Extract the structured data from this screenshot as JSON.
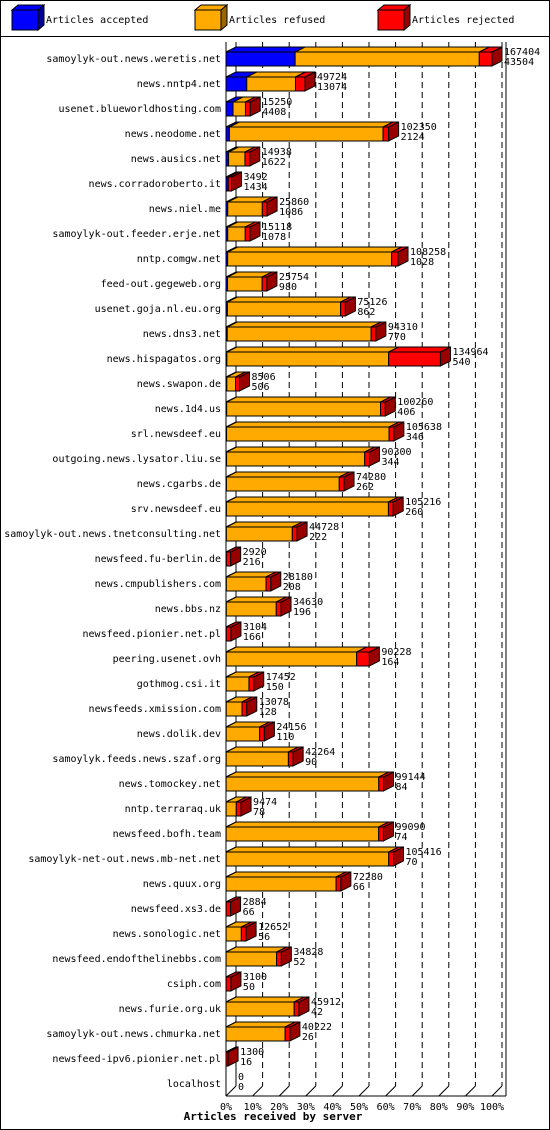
{
  "chart_data": {
    "type": "stacked-bar-3d",
    "x_label": "Articles received by server",
    "categories": [
      "samoylyk-out.news.weretis.net",
      "news.nntp4.net",
      "usenet.blueworldhosting.com",
      "news.neodome.net",
      "news.ausics.net",
      "news.corradoroberto.it",
      "news.niel.me",
      "samoylyk-out.feeder.erje.net",
      "nntp.comgw.net",
      "feed-out.gegeweb.org",
      "usenet.goja.nl.eu.org",
      "news.dns3.net",
      "news.hispagatos.org",
      "news.swapon.de",
      "news.1d4.us",
      "srl.newsdeef.eu",
      "outgoing.news.lysator.liu.se",
      "news.cgarbs.de",
      "srv.newsdeef.eu",
      "samoylyk-out.news.tnetconsulting.net",
      "newsfeed.fu-berlin.de",
      "news.cmpublishers.com",
      "news.bbs.nz",
      "newsfeed.pionier.net.pl",
      "peering.usenet.ovh",
      "gothmog.csi.it",
      "newsfeeds.xmission.com",
      "news.dolik.dev",
      "samoylyk.feeds.news.szaf.org",
      "news.tomockey.net",
      "nntp.terraraq.uk",
      "newsfeed.bofh.team",
      "samoylyk-net-out.news.mb-net.net",
      "news.quux.org",
      "newsfeed.xs3.de",
      "news.sonologic.net",
      "newsfeed.endofthelinebbs.com",
      "csiph.com",
      "news.furie.org.uk",
      "samoylyk-out.news.chmurka.net",
      "newsfeed-ipv6.pionier.net.pl",
      "localhost"
    ],
    "totals": [
      167404,
      49724,
      15250,
      102350,
      14938,
      3492,
      25860,
      15118,
      108258,
      25754,
      75126,
      94310,
      134964,
      8506,
      100260,
      105638,
      90300,
      74280,
      105216,
      44728,
      2920,
      28180,
      34630,
      3104,
      90228,
      17452,
      13078,
      24156,
      42264,
      99144,
      9474,
      99090,
      105416,
      72280,
      2884,
      12652,
      34828,
      3100,
      45912,
      40222,
      1300,
      0
    ],
    "series": [
      {
        "name": "Articles accepted",
        "color": "#0000ff",
        "values": [
          43504,
          13074,
          4408,
          2124,
          1622,
          1434,
          1086,
          1078,
          1028,
          980,
          862,
          770,
          540,
          506,
          406,
          346,
          344,
          262,
          260,
          222,
          216,
          208,
          196,
          166,
          164,
          150,
          128,
          110,
          90,
          84,
          78,
          74,
          70,
          66,
          66,
          56,
          52,
          50,
          42,
          26,
          16,
          0
        ]
      },
      {
        "name": "Articles refused",
        "color": "#ffaa00",
        "values": [
          115900,
          30650,
          7842,
          96726,
          10316,
          0,
          21774,
          11040,
          103230,
          21774,
          71264,
          90540,
          101824,
          5500,
          96854,
          102292,
          86956,
          71018,
          101956,
          41506,
          0,
          24972,
          31434,
          0,
          82064,
          14302,
          9950,
          21046,
          39174,
          96060,
          6396,
          96016,
          102346,
          69214,
          0,
          9596,
          31776,
          0,
          42870,
          37196,
          0,
          0
        ]
      },
      {
        "name": "Articles rejected",
        "color": "#ff0000",
        "values": [
          8000,
          6000,
          3000,
          3500,
          3000,
          2058,
          3000,
          3000,
          4000,
          3000,
          3000,
          3000,
          32600,
          2500,
          3000,
          3000,
          3000,
          3000,
          3000,
          3000,
          2704,
          3000,
          3000,
          2938,
          8000,
          3000,
          3000,
          3000,
          3000,
          3000,
          3000,
          3000,
          3000,
          3000,
          2818,
          3000,
          3000,
          3050,
          3000,
          3000,
          1284,
          0
        ]
      }
    ],
    "xlim": [
      0,
      167404
    ],
    "xticks": [
      {
        "value": 0,
        "label": "0%"
      },
      {
        "value": 16740.4,
        "label": "10%"
      },
      {
        "value": 33480.8,
        "label": "20%"
      },
      {
        "value": 50221.2,
        "label": "30%"
      },
      {
        "value": 66961.6,
        "label": "40%"
      },
      {
        "value": 83702,
        "label": "50%"
      },
      {
        "value": 100442.4,
        "label": "60%"
      },
      {
        "value": 117182.8,
        "label": "70%"
      },
      {
        "value": 133923.2,
        "label": "80%"
      },
      {
        "value": 150663.6,
        "label": "90%"
      },
      {
        "value": 167404,
        "label": "100%"
      }
    ],
    "grid": true
  }
}
